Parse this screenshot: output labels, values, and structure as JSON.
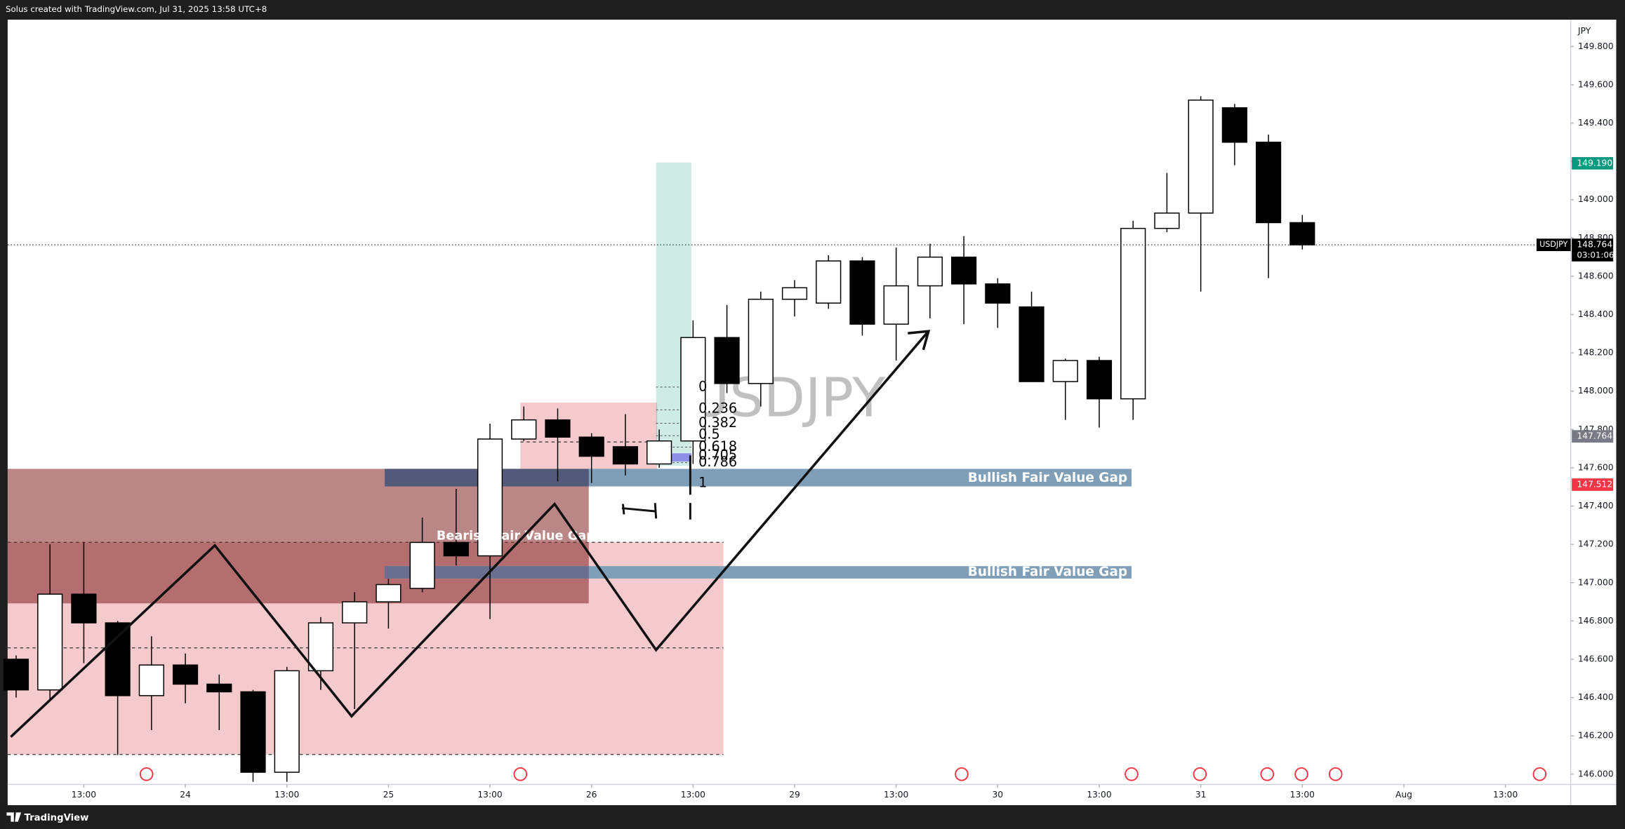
{
  "chart_data": {
    "type": "candlestick",
    "header": "Solus created with TradingView.com, Jul 31, 2025 13:58 UTC+8",
    "footer": "TradingView",
    "currency": "JPY",
    "symbol": "USDJPY",
    "watermark": "USDJPY",
    "up_color": "#ffffff",
    "down_color": "#000000",
    "open": [
      146.6,
      146.44,
      146.94,
      146.79,
      146.41,
      146.57,
      146.47,
      146.43,
      146.01,
      146.54,
      146.79,
      146.9,
      146.97,
      147.21,
      147.14,
      147.75,
      147.85,
      147.76,
      147.71,
      147.62,
      147.74,
      148.28,
      148.04,
      148.48,
      148.46,
      148.68,
      148.35,
      148.55,
      148.7,
      148.56,
      148.44,
      148.05,
      148.16,
      147.96,
      148.85,
      148.93,
      149.48,
      149.3,
      148.88
    ],
    "high": [
      146.62,
      147.2,
      147.21,
      146.8,
      146.72,
      146.63,
      146.52,
      146.44,
      146.56,
      146.82,
      146.95,
      147.02,
      147.34,
      147.49,
      147.83,
      147.92,
      147.91,
      147.78,
      147.88,
      147.8,
      148.37,
      148.45,
      148.52,
      148.58,
      148.71,
      148.7,
      148.75,
      148.77,
      148.81,
      148.59,
      148.52,
      148.17,
      148.18,
      148.89,
      149.14,
      149.54,
      149.5,
      149.34,
      148.92
    ],
    "low": [
      146.4,
      146.38,
      146.58,
      146.1,
      146.23,
      146.37,
      146.23,
      145.96,
      145.96,
      146.44,
      146.34,
      146.76,
      146.95,
      147.09,
      146.81,
      147.74,
      147.53,
      147.52,
      147.56,
      147.6,
      147.62,
      147.99,
      147.92,
      148.39,
      148.43,
      148.29,
      148.16,
      148.38,
      148.35,
      148.33,
      148.05,
      147.85,
      147.81,
      147.85,
      148.83,
      148.52,
      149.18,
      148.59,
      148.74
    ],
    "close": [
      146.44,
      146.94,
      146.79,
      146.41,
      146.57,
      146.47,
      146.43,
      146.01,
      146.54,
      146.79,
      146.9,
      146.99,
      147.21,
      147.14,
      147.75,
      147.85,
      147.76,
      147.66,
      147.62,
      147.74,
      148.28,
      148.04,
      148.48,
      148.54,
      148.68,
      148.35,
      148.55,
      148.7,
      148.56,
      148.46,
      148.05,
      148.16,
      147.96,
      148.85,
      148.93,
      149.52,
      149.3,
      148.88,
      148.764
    ],
    "xlim": [
      -0.25,
      45.93
    ],
    "xticks": [
      {
        "value": 2,
        "label": "13:00"
      },
      {
        "value": 5,
        "label": "24"
      },
      {
        "value": 8,
        "label": "13:00"
      },
      {
        "value": 11,
        "label": "25"
      },
      {
        "value": 14,
        "label": "13:00"
      },
      {
        "value": 17,
        "label": "26"
      },
      {
        "value": 20,
        "label": "13:00"
      },
      {
        "value": 23,
        "label": "29"
      },
      {
        "value": 26,
        "label": "13:00"
      },
      {
        "value": 29,
        "label": "30"
      },
      {
        "value": 32,
        "label": "13:00"
      },
      {
        "value": 35,
        "label": "31"
      },
      {
        "value": 38,
        "label": "13:00"
      },
      {
        "value": 41,
        "label": "Aug"
      },
      {
        "value": 44,
        "label": "13:00"
      }
    ],
    "ylim": [
      145.946,
      149.94
    ],
    "yticks": [
      {
        "value": 146.0,
        "label": "146.000"
      },
      {
        "value": 146.2,
        "label": "146.200"
      },
      {
        "value": 146.4,
        "label": "146.400"
      },
      {
        "value": 146.6,
        "label": "146.600"
      },
      {
        "value": 146.8,
        "label": "146.800"
      },
      {
        "value": 147.0,
        "label": "147.000"
      },
      {
        "value": 147.2,
        "label": "147.200"
      },
      {
        "value": 147.4,
        "label": "147.400"
      },
      {
        "value": 147.6,
        "label": "147.600"
      },
      {
        "value": 147.8,
        "label": "147.800"
      },
      {
        "value": 148.0,
        "label": "148.000"
      },
      {
        "value": 148.2,
        "label": "148.200"
      },
      {
        "value": 148.4,
        "label": "148.400"
      },
      {
        "value": 148.6,
        "label": "148.600"
      },
      {
        "value": 148.8,
        "label": "148.800"
      },
      {
        "value": 149.0,
        "label": "149.000"
      },
      {
        "value": 149.2,
        "label": "149.200"
      },
      {
        "value": 149.4,
        "label": "149.400"
      },
      {
        "value": 149.6,
        "label": "149.600"
      },
      {
        "value": 149.8,
        "label": "149.800"
      }
    ],
    "last_price": 148.764,
    "countdown": "03:01:06",
    "price_labels": [
      {
        "value": 149.19,
        "label": "149.190",
        "color": "#089981"
      },
      {
        "value": 147.764,
        "label": "147.764",
        "color": "#787b86"
      },
      {
        "value": 147.512,
        "label": "147.512",
        "color": "#f23645"
      }
    ],
    "annotations": {
      "bearish_fvg": "Bearish Fair Value Gap",
      "bullish_fvg_1": "Bullish Fair Value Gap",
      "bullish_fvg_2": "Bullish Fair Value Gap",
      "fib_levels": [
        "0",
        "0.236",
        "0.382",
        "0.5",
        "0.618",
        "0.705",
        "0.786",
        "1"
      ]
    }
  }
}
